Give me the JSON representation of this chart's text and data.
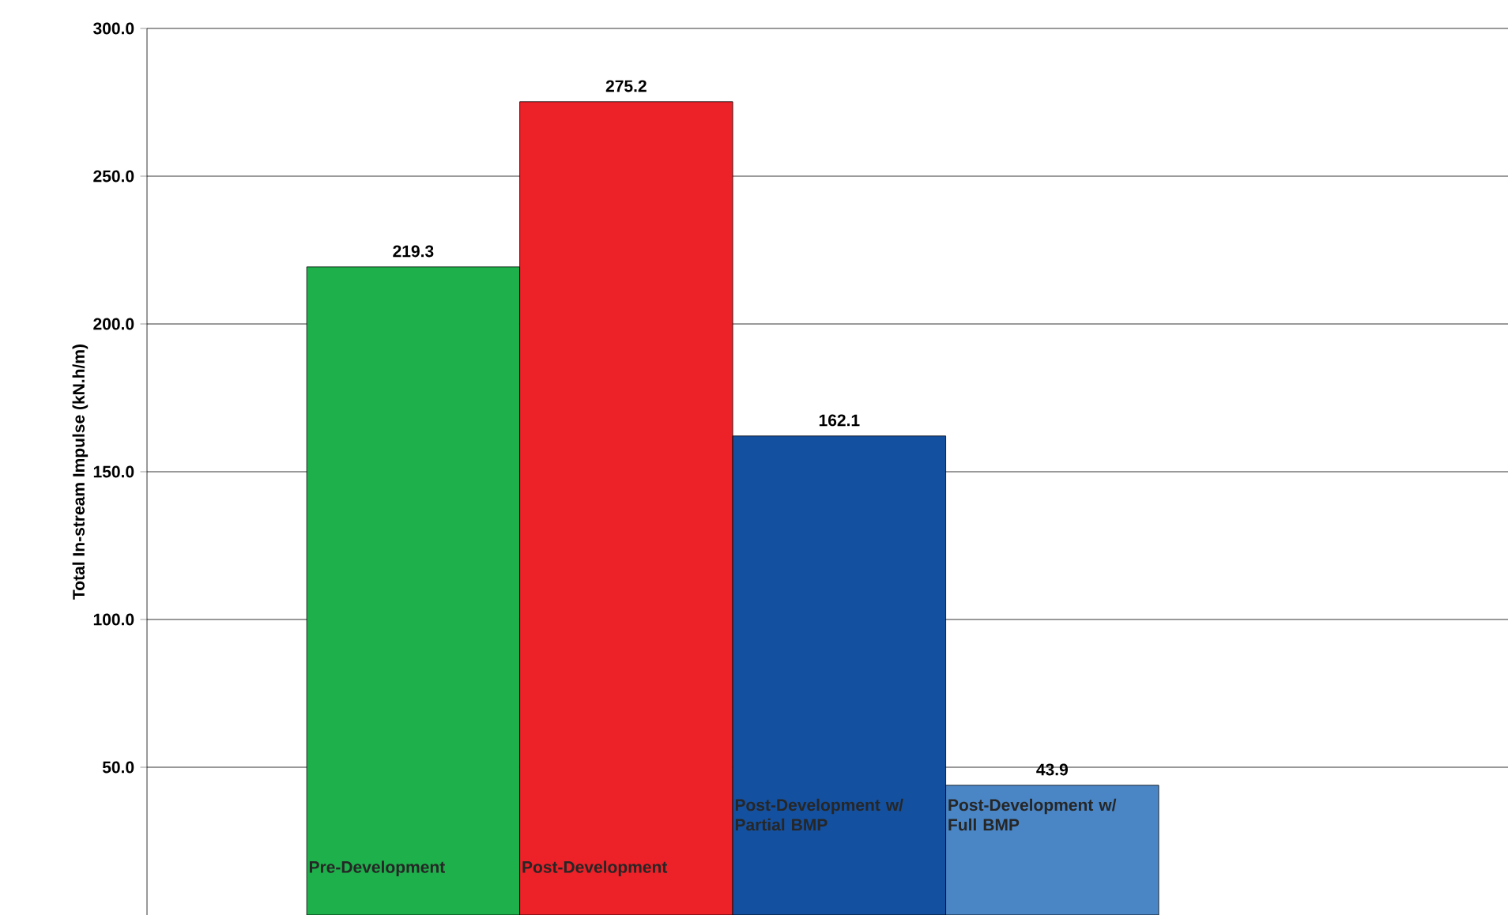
{
  "chart_data": {
    "type": "bar",
    "ylabel": "Total In-stream Impulse (kN.h/m)",
    "categories": [
      "Pre-Development",
      "Post-Development",
      "Post-Development w/ Partial BMP",
      "Post-Development w/ Full BMP"
    ],
    "values": [
      219.3,
      275.2,
      162.1,
      43.9
    ],
    "colors": [
      "#1eb04b",
      "#ed2128",
      "#1450a0",
      "#4a86c6"
    ],
    "value_labels": [
      "219.3",
      "275.2",
      "162.1",
      "43.9"
    ],
    "ylim": [
      0,
      300
    ],
    "yticks": [
      {
        "value": 50,
        "label": "50.0"
      },
      {
        "value": 100,
        "label": "100.0"
      },
      {
        "value": 150,
        "label": "150.0"
      },
      {
        "value": 200,
        "label": "200.0"
      },
      {
        "value": 250,
        "label": "250.0"
      },
      {
        "value": 300,
        "label": "300.0"
      }
    ],
    "grid": "y"
  }
}
